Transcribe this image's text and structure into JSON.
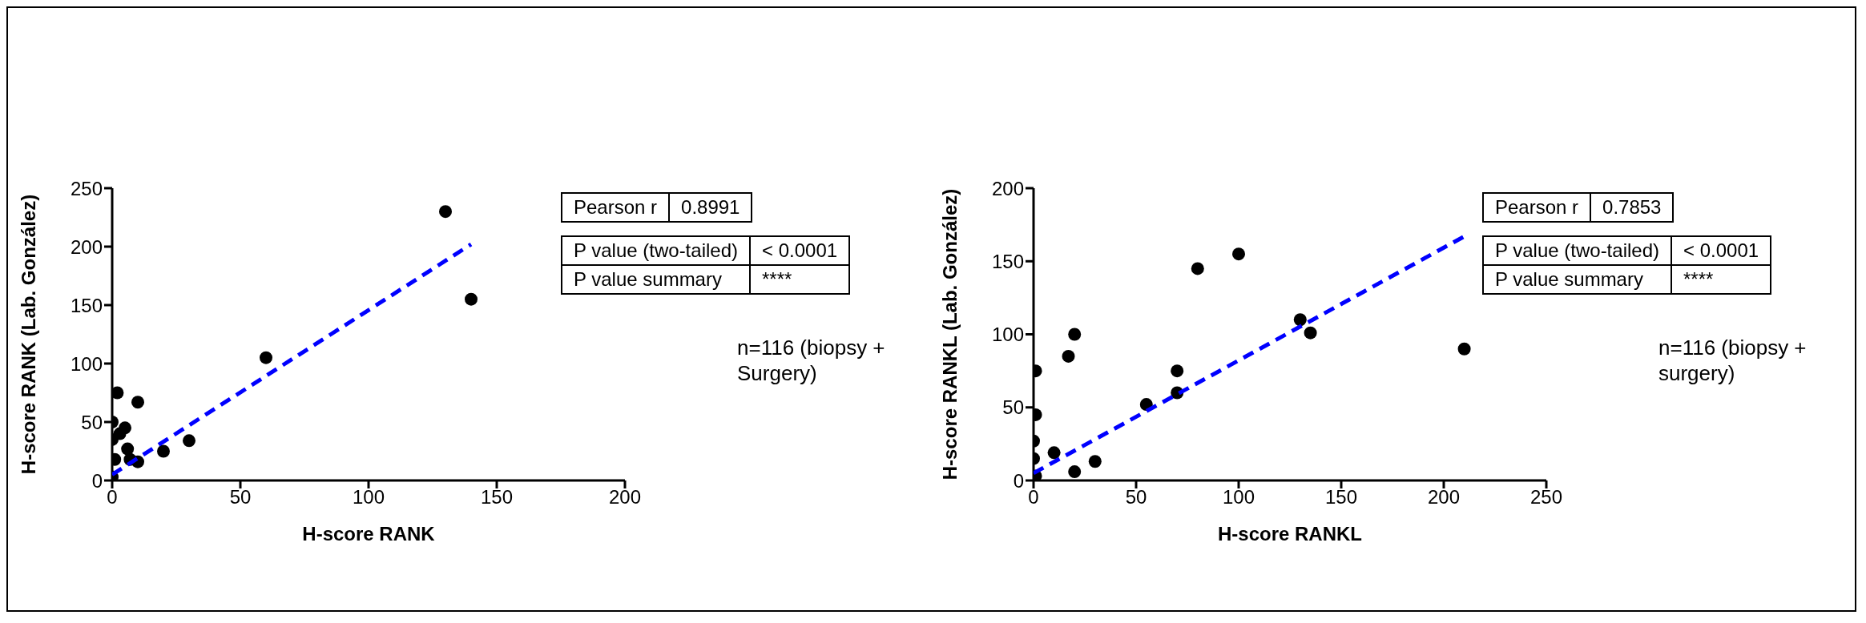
{
  "chart_data": [
    {
      "type": "scatter",
      "xlabel": "H-score RANK",
      "ylabel": "H-score RANK (Lab. González)",
      "xlim": [
        0,
        200
      ],
      "xticks": [
        0,
        50,
        100,
        150,
        200
      ],
      "ylim": [
        0,
        250
      ],
      "yticks": [
        0,
        50,
        100,
        150,
        200,
        250
      ],
      "marker": "circle",
      "series": [
        {
          "color": "#000000",
          "x": [
            0,
            1,
            0,
            0,
            2,
            3,
            5,
            6,
            7,
            10,
            10,
            20,
            30,
            60,
            130,
            140
          ],
          "values": [
            3,
            18,
            35,
            50,
            75,
            40,
            45,
            27,
            18,
            67,
            16,
            25,
            34,
            105,
            230,
            155
          ]
        },
        {
          "type": "line",
          "color": "#0000ff",
          "line_style": "dashed",
          "marker": "none",
          "x": [
            0,
            140
          ],
          "values": [
            5,
            202
          ]
        }
      ],
      "annotations": [
        "Pearson r",
        "0.8991",
        "P value (two-tailed)",
        "< 0.0001",
        "P value summary",
        "****",
        "n=116 (biopsy + Surgery)"
      ]
    },
    {
      "type": "scatter",
      "xlabel": "H-score RANKL",
      "ylabel": "H-score RANKL (Lab. González)",
      "xlim": [
        0,
        250
      ],
      "xticks": [
        0,
        50,
        100,
        150,
        200,
        250
      ],
      "ylim": [
        0,
        200
      ],
      "yticks": [
        0,
        50,
        100,
        150,
        200
      ],
      "marker": "circle",
      "series": [
        {
          "color": "#000000",
          "x": [
            1,
            0,
            0,
            1,
            1,
            10,
            17,
            20,
            20,
            30,
            55,
            70,
            70,
            80,
            100,
            130,
            135,
            210
          ],
          "values": [
            3,
            15,
            27,
            45,
            75,
            19,
            85,
            100,
            6,
            13,
            52,
            75,
            60,
            145,
            155,
            110,
            101,
            90
          ]
        },
        {
          "type": "line",
          "color": "#0000ff",
          "line_style": "dashed",
          "marker": "none",
          "x": [
            0,
            210
          ],
          "values": [
            5,
            167
          ]
        }
      ],
      "annotations": [
        "Pearson r",
        "0.7853",
        "P value (two-tailed)",
        "< 0.0001",
        "P value summary",
        "****",
        "n=116 (biopsy + surgery)"
      ]
    }
  ]
}
